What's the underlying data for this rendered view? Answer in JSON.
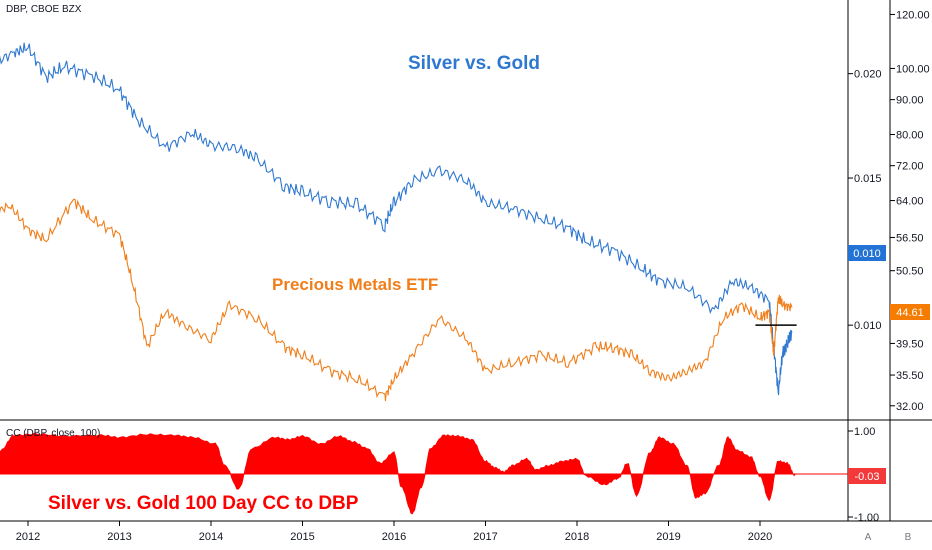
{
  "header": {
    "symbol_label": "DBP, CBOE BZX"
  },
  "annotations": {
    "silver_gold": "Silver vs. Gold",
    "dbp": "Precious Metals ETF",
    "cc": "Silver vs. Gold 100 Day CC to DBP"
  },
  "indicator": {
    "label": "CC (DBP, close, 100)"
  },
  "badges": {
    "ratio": "0.010",
    "dbp": "44.61",
    "cc": "-0.03"
  },
  "buttons": {
    "auto": "A",
    "brush": "B"
  },
  "colors": {
    "ratio_line": "#2f78d0",
    "dbp_line": "#f07e1a",
    "cc_fill": "#ff0000",
    "badge_blue": "#2373d6",
    "badge_orange": "#f57c00",
    "badge_red": "#f23a3a",
    "level_line": "#000000"
  },
  "chart_data": [
    {
      "type": "line",
      "title": "",
      "x_label_ticks": [
        "2012",
        "2013",
        "2014",
        "2015",
        "2016",
        "2017",
        "2018",
        "2019",
        "2020"
      ],
      "y_left_axis": {
        "label": "",
        "scale": "log",
        "ticks": [
          0.01,
          0.015,
          0.02
        ],
        "range": [
          0.0077,
          0.0245
        ]
      },
      "y_right_axis": {
        "label": "",
        "scale": "log",
        "ticks": [
          "120.00",
          "100.00",
          "90.00",
          "80.00",
          "72.00",
          "64.00",
          "56.50",
          "50.50",
          "44.61",
          "39.50",
          "35.50",
          "32.00"
        ],
        "range": [
          30.5,
          126
        ]
      },
      "series": [
        {
          "name": "",
          "axis": "left",
          "x": [
            2011.6,
            2011.85,
            2012.0,
            2012.2,
            2012.4,
            2012.7,
            2013.0,
            2013.2,
            2013.5,
            2013.8,
            2014.0,
            2014.3,
            2014.5,
            2014.8,
            2015.0,
            2015.3,
            2015.6,
            2015.9,
            2016.0,
            2016.2,
            2016.5,
            2016.8,
            2017.0,
            2017.3,
            2017.6,
            2017.9,
            2018.1,
            2018.4,
            2018.7,
            2018.9,
            2019.2,
            2019.5,
            2019.7,
            2019.9,
            2020.1,
            2020.15,
            2020.2,
            2020.25,
            2020.3,
            2020.35
          ],
          "values": [
            0.0205,
            0.0212,
            0.0215,
            0.0198,
            0.0204,
            0.0199,
            0.0191,
            0.0176,
            0.0163,
            0.017,
            0.0164,
            0.0163,
            0.0158,
            0.0147,
            0.0144,
            0.0141,
            0.0139,
            0.0132,
            0.014,
            0.0149,
            0.0153,
            0.0149,
            0.014,
            0.0138,
            0.0134,
            0.0131,
            0.0126,
            0.0123,
            0.0117,
            0.0113,
            0.0111,
            0.0104,
            0.0113,
            0.0111,
            0.0107,
            0.0094,
            0.0083,
            0.0093,
            0.0095,
            0.0098
          ]
        },
        {
          "name": "",
          "axis": "right",
          "x": [
            2011.6,
            2011.8,
            2012.0,
            2012.2,
            2012.5,
            2012.7,
            2013.0,
            2013.15,
            2013.3,
            2013.5,
            2013.7,
            2014.0,
            2014.2,
            2014.5,
            2014.8,
            2015.0,
            2015.3,
            2015.6,
            2015.9,
            2016.0,
            2016.2,
            2016.5,
            2016.8,
            2017.0,
            2017.3,
            2017.6,
            2017.9,
            2018.2,
            2018.4,
            2018.6,
            2018.8,
            2019.0,
            2019.2,
            2019.4,
            2019.6,
            2019.8,
            2020.0,
            2020.1,
            2020.15,
            2020.2,
            2020.25,
            2020.35
          ],
          "values": [
            61,
            63,
            58,
            56,
            64,
            60,
            57,
            48,
            39,
            44,
            42,
            40,
            45,
            43,
            39,
            38,
            36,
            35,
            33,
            35,
            38,
            43,
            40,
            36,
            37,
            38,
            37,
            39,
            39,
            38,
            36,
            35,
            36,
            37,
            43,
            45,
            43,
            44,
            38,
            46,
            45,
            44.61
          ]
        }
      ],
      "annotations": [
        {
          "text": "Silver vs. Gold",
          "series": "ratio"
        },
        {
          "text": "Precious Metals ETF",
          "series": "dbp"
        }
      ],
      "level_line": {
        "value": 0.01,
        "from": 2019.95,
        "to": 2020.4
      },
      "grid": false,
      "legend": "none"
    },
    {
      "type": "area",
      "title": "",
      "y_range": [
        -1.0,
        1.0
      ],
      "y_ticks": [
        "1.00",
        "-1.00"
      ],
      "x": [
        2011.58,
        2011.7,
        2011.85,
        2012.1,
        2012.4,
        2012.8,
        2013.0,
        2013.3,
        2013.6,
        2013.8,
        2014.05,
        2014.15,
        2014.3,
        2014.45,
        2014.7,
        2014.85,
        2015.0,
        2015.2,
        2015.4,
        2015.55,
        2015.7,
        2015.85,
        2016.0,
        2016.08,
        2016.2,
        2016.3,
        2016.4,
        2016.55,
        2016.7,
        2016.85,
        2017.0,
        2017.1,
        2017.2,
        2017.3,
        2017.45,
        2017.55,
        2017.7,
        2017.85,
        2018.0,
        2018.1,
        2018.3,
        2018.45,
        2018.55,
        2018.65,
        2018.8,
        2018.9,
        2019.05,
        2019.2,
        2019.3,
        2019.4,
        2019.55,
        2019.65,
        2019.75,
        2019.9,
        2020.0,
        2020.1,
        2020.2,
        2020.3,
        2020.38
      ],
      "values": [
        -0.3,
        0.55,
        0.9,
        0.93,
        0.88,
        0.9,
        0.85,
        0.92,
        0.9,
        0.85,
        0.7,
        0.2,
        -0.35,
        0.6,
        0.85,
        0.8,
        0.88,
        0.7,
        0.88,
        0.75,
        0.6,
        0.25,
        0.5,
        -0.3,
        -0.92,
        -0.3,
        0.6,
        0.9,
        0.88,
        0.8,
        0.3,
        0.15,
        0.05,
        0.2,
        0.35,
        0.1,
        0.2,
        0.3,
        0.35,
        -0.05,
        -0.25,
        -0.1,
        0.25,
        -0.5,
        0.5,
        0.85,
        0.7,
        0.2,
        -0.55,
        -0.45,
        0.2,
        0.85,
        0.55,
        0.4,
        -0.05,
        -0.6,
        0.3,
        0.25,
        -0.03
      ]
    }
  ]
}
